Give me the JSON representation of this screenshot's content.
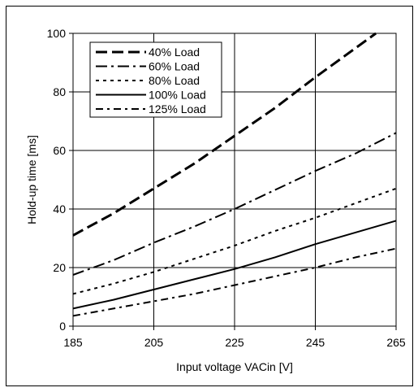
{
  "chart_data": {
    "type": "line",
    "xlabel": "Input voltage VACin [V]",
    "ylabel": "Hold-up time [ms]",
    "xlim": [
      185,
      265
    ],
    "ylim": [
      0,
      100
    ],
    "xticks": [
      185,
      205,
      225,
      245,
      265
    ],
    "yticks": [
      0,
      20,
      40,
      60,
      80,
      100
    ],
    "grid": true,
    "legend_position": "top-left",
    "series": [
      {
        "name": "40% Load",
        "style": "long-dash",
        "x": [
          185,
          195,
          205,
          215,
          225,
          235,
          245,
          255,
          260
        ],
        "y": [
          31,
          38.5,
          47,
          55.5,
          65,
          74.5,
          85,
          95,
          100
        ]
      },
      {
        "name": "60% Load",
        "style": "dash-dot-long",
        "x": [
          185,
          195,
          205,
          215,
          225,
          235,
          245,
          255,
          265
        ],
        "y": [
          17.5,
          22.5,
          28.5,
          34,
          40,
          46.5,
          53,
          59,
          66
        ]
      },
      {
        "name": "80% Load",
        "style": "short-dash",
        "x": [
          185,
          195,
          205,
          215,
          225,
          235,
          245,
          255,
          265
        ],
        "y": [
          11,
          14.5,
          18.5,
          23,
          27.5,
          32.5,
          37,
          42,
          47
        ]
      },
      {
        "name": "100% Load",
        "style": "solid",
        "x": [
          185,
          195,
          205,
          215,
          225,
          235,
          245,
          255,
          265
        ],
        "y": [
          6,
          9,
          12.5,
          16,
          19.5,
          23.5,
          28,
          32,
          36
        ]
      },
      {
        "name": "125% Load",
        "style": "dash-dot",
        "x": [
          185,
          195,
          205,
          215,
          225,
          235,
          245,
          255,
          265
        ],
        "y": [
          3.5,
          6,
          8.5,
          11,
          14,
          17,
          20,
          23.5,
          26.5
        ]
      }
    ]
  }
}
